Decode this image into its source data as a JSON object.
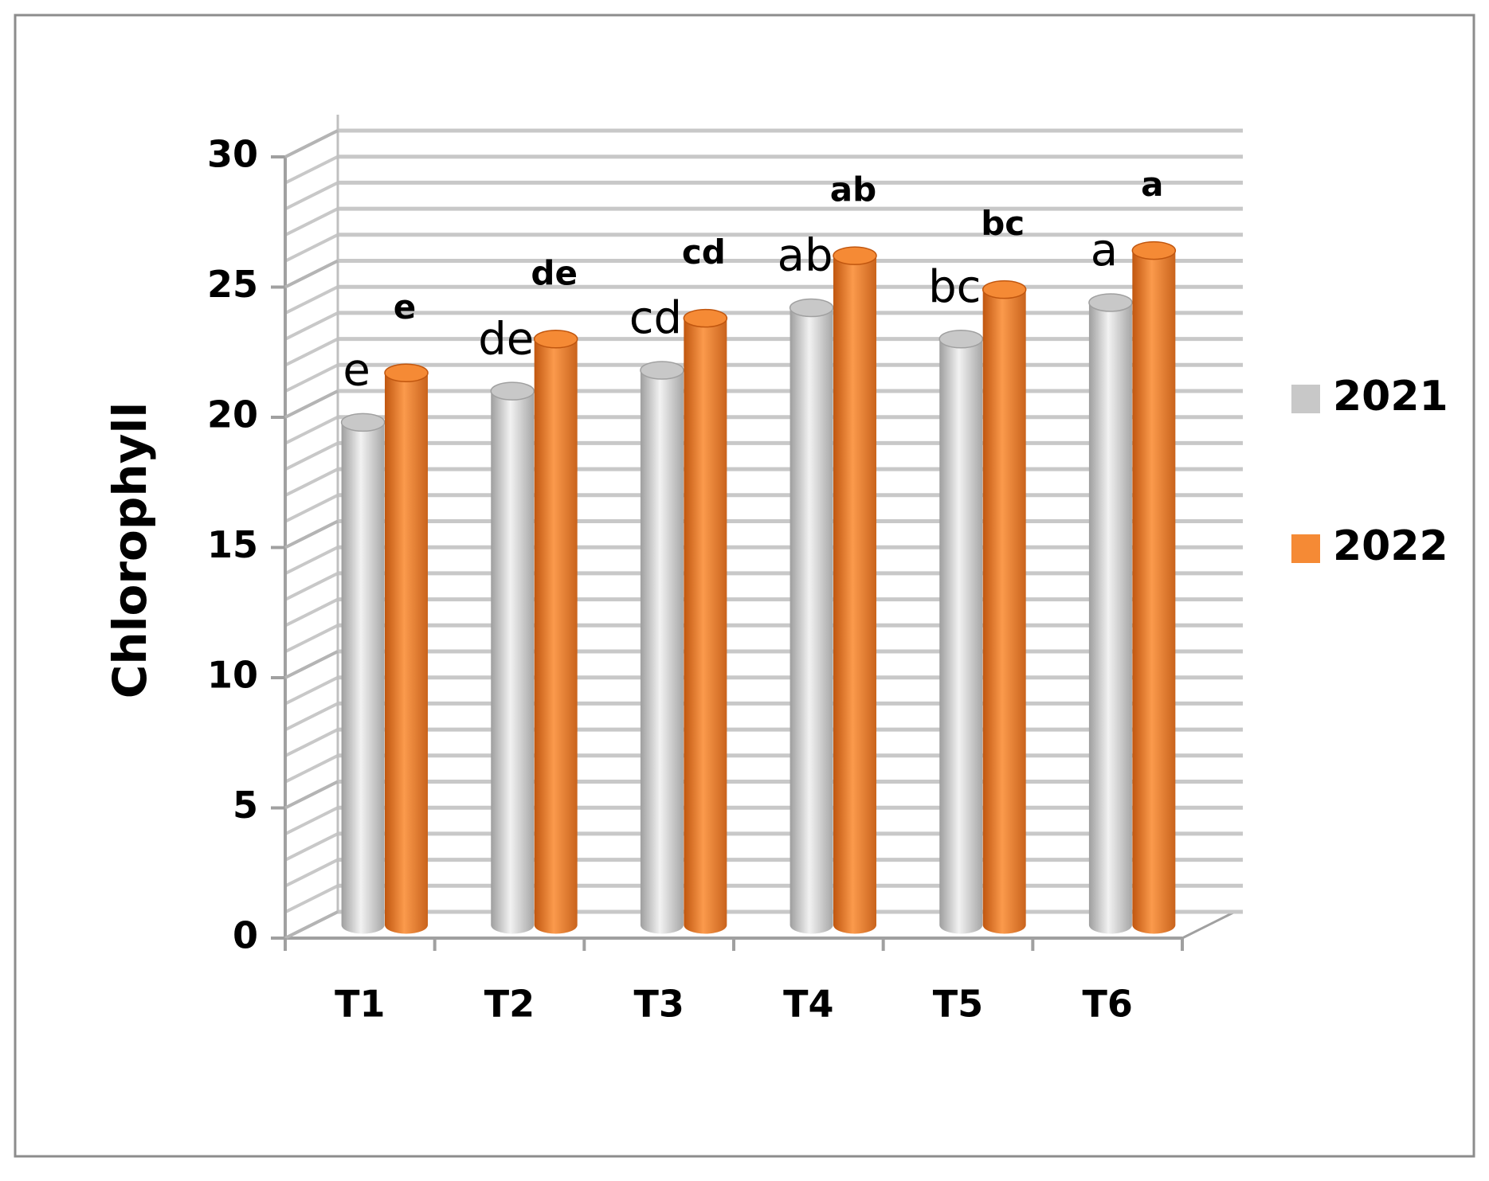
{
  "chart_data": {
    "type": "bar3d",
    "y_label": "Chlorophyll",
    "categories": [
      "T1",
      "T2",
      "T3",
      "T4",
      "T5",
      "T6"
    ],
    "series": [
      {
        "name": "2021",
        "color": "#c8c8c8",
        "values": [
          19.3,
          20.5,
          21.3,
          23.7,
          22.5,
          23.9
        ],
        "significance": [
          "e",
          "de",
          "cd",
          "ab",
          "bc",
          "a"
        ]
      },
      {
        "name": "2022",
        "color": "#f58a35",
        "values": [
          21.2,
          22.5,
          23.3,
          25.7,
          24.4,
          25.9
        ],
        "significance": [
          "e",
          "de",
          "cd",
          "ab",
          "bc",
          "a"
        ]
      }
    ],
    "ylim": [
      0,
      30
    ],
    "yticks": [
      0,
      5,
      10,
      15,
      20,
      25,
      30
    ],
    "grid": true,
    "grid_step": 1,
    "legend": "right"
  }
}
